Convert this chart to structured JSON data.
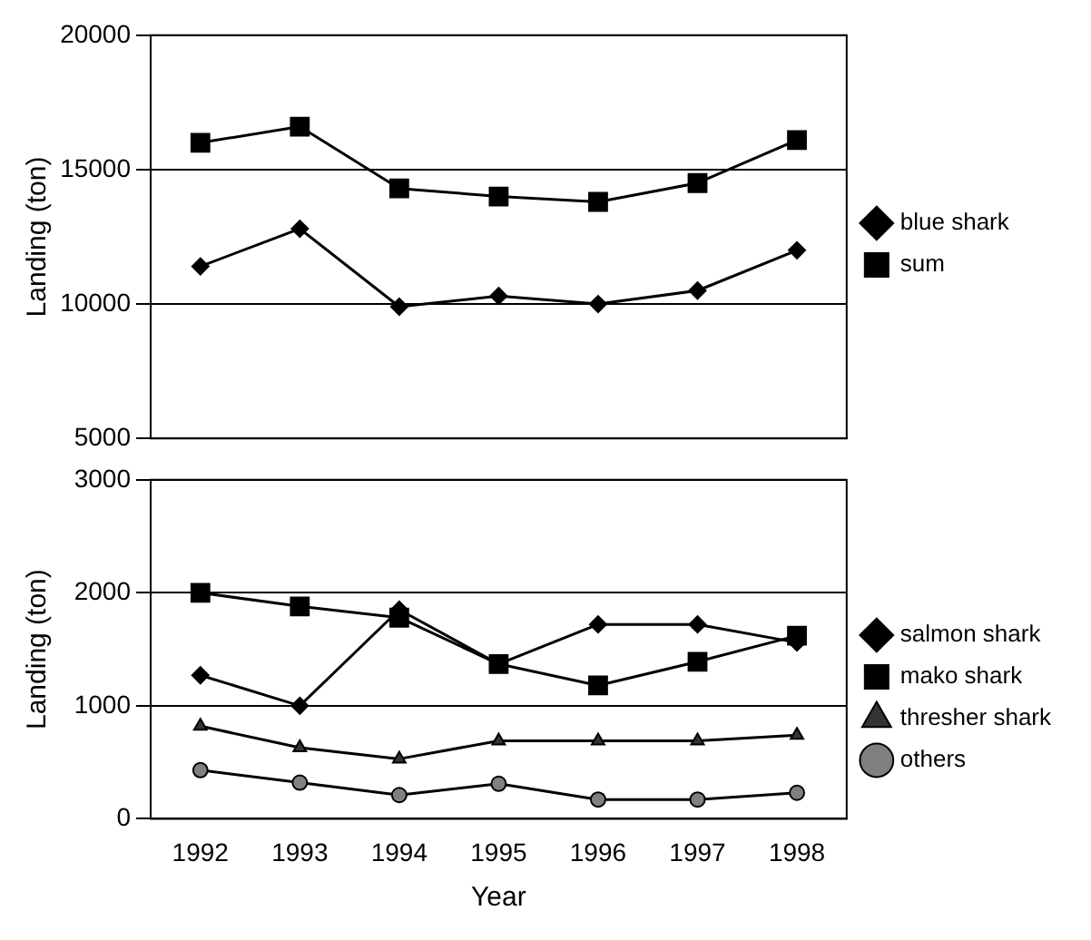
{
  "chart_data": [
    {
      "type": "line",
      "ylabel": "Landing (ton)",
      "categories": [
        "1992",
        "1993",
        "1994",
        "1995",
        "1996",
        "1997",
        "1998"
      ],
      "ylim": [
        5000,
        20000
      ],
      "yticks": [
        5000,
        10000,
        15000,
        20000
      ],
      "grid": "y",
      "legend": "right",
      "tick_labels": "y",
      "series": [
        {
          "name": "blue shark",
          "color": "#000000",
          "marker": "diamond",
          "values": [
            11400,
            12800,
            9900,
            10300,
            10000,
            10500,
            12000
          ]
        },
        {
          "name": "sum",
          "color": "#000000",
          "marker": "square",
          "values": [
            16000,
            16600,
            14300,
            14000,
            13800,
            14500,
            16100
          ]
        }
      ]
    },
    {
      "type": "line",
      "xlabel": "Year",
      "ylabel": "Landing (ton)",
      "categories": [
        "1992",
        "1993",
        "1994",
        "1995",
        "1996",
        "1997",
        "1998"
      ],
      "ylim": [
        0,
        3000
      ],
      "yticks": [
        0,
        1000,
        2000,
        3000
      ],
      "grid": "y",
      "legend": "right",
      "series": [
        {
          "name": "salmon shark",
          "color": "#000000",
          "marker": "diamond",
          "values": [
            1270,
            1000,
            1850,
            1370,
            1720,
            1720,
            1560
          ]
        },
        {
          "name": "mako shark",
          "color": "#000000",
          "marker": "square",
          "values": [
            2000,
            1880,
            1780,
            1370,
            1180,
            1390,
            1620
          ]
        },
        {
          "name": "thresher shark",
          "color": "#333333",
          "marker": "triangle",
          "values": [
            820,
            630,
            530,
            690,
            690,
            690,
            740
          ]
        },
        {
          "name": "others",
          "color": "#808080",
          "marker": "circle",
          "values": [
            430,
            320,
            210,
            310,
            170,
            170,
            230
          ]
        }
      ]
    }
  ]
}
